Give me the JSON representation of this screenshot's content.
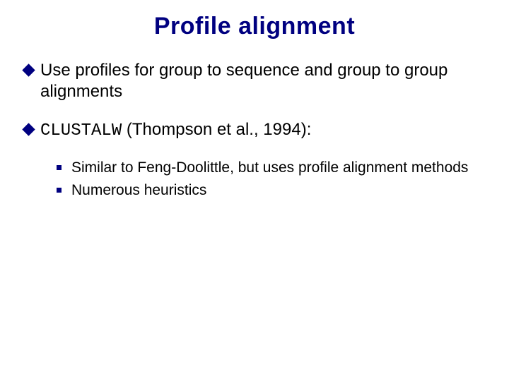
{
  "title": "Profile alignment",
  "colors": {
    "title_color": "#000080",
    "bullet_color": "#000080",
    "text_color": "#000000",
    "background": "#ffffff"
  },
  "typography": {
    "title_font": "Comic Sans MS",
    "title_size_pt": 26,
    "title_weight": "bold",
    "body_font": "Arial",
    "body_size_pt": 18,
    "sub_size_pt": 16,
    "mono_font": "Courier New"
  },
  "bullets": [
    {
      "prefix": "",
      "text": "Use profiles for group to sequence and group to group alignments",
      "sub": []
    },
    {
      "prefix_mono": "CLUSTALW",
      "text": " (Thompson et al., 1994):",
      "sub": [
        {
          "text": "Similar to Feng-Doolittle, but uses profile alignment methods"
        },
        {
          "text": "Numerous heuristics"
        }
      ]
    }
  ]
}
